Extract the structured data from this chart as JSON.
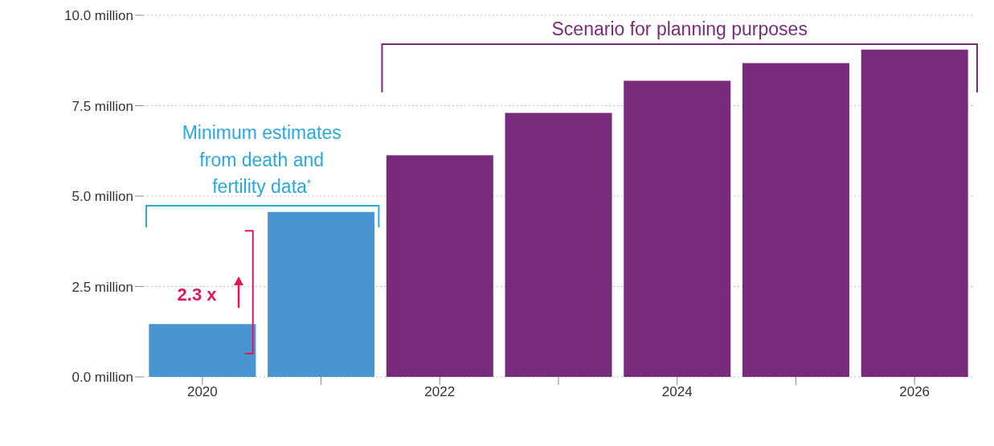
{
  "chart_data": {
    "type": "bar",
    "categories": [
      "2020",
      null,
      "2022",
      null,
      "2024",
      null,
      "2026"
    ],
    "values": [
      1.46,
      4.56,
      6.13,
      7.3,
      8.19,
      8.68,
      9.05
    ],
    "colors": [
      "#4a95d0",
      "#4a95d0",
      "#782b7b",
      "#782b7b",
      "#782b7b",
      "#782b7b",
      "#782b7b"
    ],
    "ylim": [
      0,
      10
    ],
    "yticks": [
      {
        "value": 0,
        "label": "0.0 million"
      },
      {
        "value": 2.5,
        "label": "2.5 million"
      },
      {
        "value": 5,
        "label": "5.0 million"
      },
      {
        "value": 7.5,
        "label": "7.5 million"
      },
      {
        "value": 10,
        "label": "10.0 million"
      }
    ],
    "grid": "y",
    "annotations": [
      "Scenario for planning purposes",
      "Minimum estimates from death and fertility data$^{*}$",
      "2.3 x"
    ]
  }
}
